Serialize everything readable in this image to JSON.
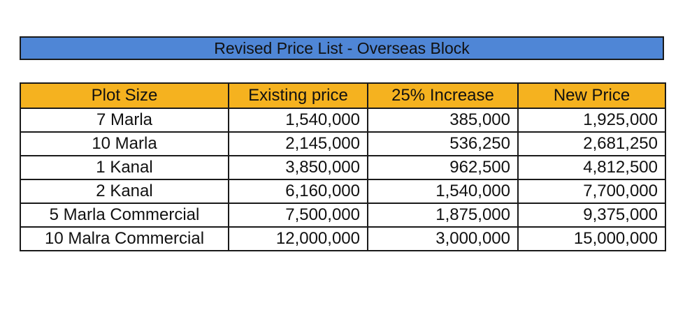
{
  "title": "Revised Price List - Overseas Block",
  "headers": {
    "plot_size": "Plot Size",
    "existing_price": "Existing price",
    "increase": "25% Increase",
    "new_price": "New Price"
  },
  "rows": [
    {
      "plot_size": "7 Marla",
      "existing_price": "1,540,000",
      "increase": "385,000",
      "new_price": "1,925,000"
    },
    {
      "plot_size": "10 Marla",
      "existing_price": "2,145,000",
      "increase": "536,250",
      "new_price": "2,681,250"
    },
    {
      "plot_size": "1 Kanal",
      "existing_price": "3,850,000",
      "increase": "962,500",
      "new_price": "4,812,500"
    },
    {
      "plot_size": "2 Kanal",
      "existing_price": "6,160,000",
      "increase": "1,540,000",
      "new_price": "7,700,000"
    },
    {
      "plot_size": "5 Marla Commercial",
      "existing_price": "7,500,000",
      "increase": "1,875,000",
      "new_price": "9,375,000"
    },
    {
      "plot_size": "10 Malra Commercial",
      "existing_price": "12,000,000",
      "increase": "3,000,000",
      "new_price": "15,000,000"
    }
  ],
  "colors": {
    "title_bar": "#4f86d6",
    "header_row": "#f5b21f",
    "border": "#1a1a1a"
  }
}
